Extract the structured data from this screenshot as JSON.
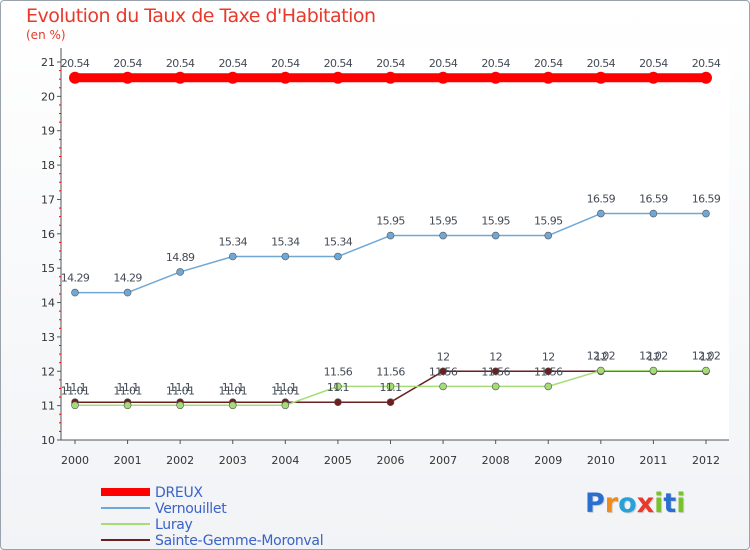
{
  "title": "Evolution du Taux de Taxe d'Habitation",
  "unit": "(en %)",
  "logo": {
    "text": "Proxiti",
    "colors": [
      "#2a6fd0",
      "#f08a1c",
      "#2aa0d8",
      "#e8392a",
      "#7cbf2f",
      "#2a6fd0",
      "#7cbf2f"
    ]
  },
  "chart_data": {
    "type": "line",
    "x": [
      2000,
      2001,
      2002,
      2003,
      2004,
      2005,
      2006,
      2007,
      2008,
      2009,
      2010,
      2011,
      2012
    ],
    "ylim": [
      10,
      21
    ],
    "yticks": [
      10,
      11,
      12,
      13,
      14,
      15,
      16,
      17,
      18,
      19,
      20,
      21
    ],
    "grid": false,
    "legend_position": "bottom-left",
    "series": [
      {
        "name": "DREUX",
        "color": "#ff0000",
        "width": 9,
        "marker": 6,
        "values": [
          20.54,
          20.54,
          20.54,
          20.54,
          20.54,
          20.54,
          20.54,
          20.54,
          20.54,
          20.54,
          20.54,
          20.54,
          20.54
        ],
        "labels": [
          "20.54",
          "20.54",
          "20.54",
          "20.54",
          "20.54",
          "20.54",
          "20.54",
          "20.54",
          "20.54",
          "20.54",
          "20.54",
          "20.54",
          "20.54"
        ]
      },
      {
        "name": "Vernouillet",
        "color": "#6fa8d6",
        "width": 1.5,
        "marker": 3.5,
        "values": [
          14.29,
          14.29,
          14.89,
          15.34,
          15.34,
          15.34,
          15.95,
          15.95,
          15.95,
          15.95,
          16.59,
          16.59,
          16.59
        ],
        "labels": [
          "14.29",
          "14.29",
          "14.89",
          "15.34",
          "15.34",
          "15.34",
          "15.95",
          "15.95",
          "15.95",
          "15.95",
          "16.59",
          "16.59",
          "16.59"
        ]
      },
      {
        "name": "Luray",
        "color": "#a6dc78",
        "width": 1.5,
        "marker": 3.5,
        "values": [
          11.01,
          11.01,
          11.01,
          11.01,
          11.01,
          11.56,
          11.56,
          11.56,
          11.56,
          11.56,
          12.02,
          12.02,
          12.02
        ],
        "labels": [
          "11.01",
          "11.01",
          "11.01",
          "11.01",
          "11.01",
          "11.56",
          "11.56",
          "11.56",
          "11.56",
          "11.56",
          "12.02",
          "12.02",
          "12.02"
        ]
      },
      {
        "name": "Sainte-Gemme-Moronval",
        "color": "#6b1f1f",
        "width": 1.5,
        "marker": 3.5,
        "values": [
          11.1,
          11.1,
          11.1,
          11.1,
          11.1,
          11.1,
          11.1,
          12,
          12,
          12,
          12,
          12,
          12
        ],
        "labels": [
          "11.1",
          "11.1",
          "11.1",
          "11.1",
          "11.1",
          "11.1",
          "11.1",
          "12",
          "12",
          "12",
          "12",
          "12",
          "12"
        ]
      }
    ]
  }
}
